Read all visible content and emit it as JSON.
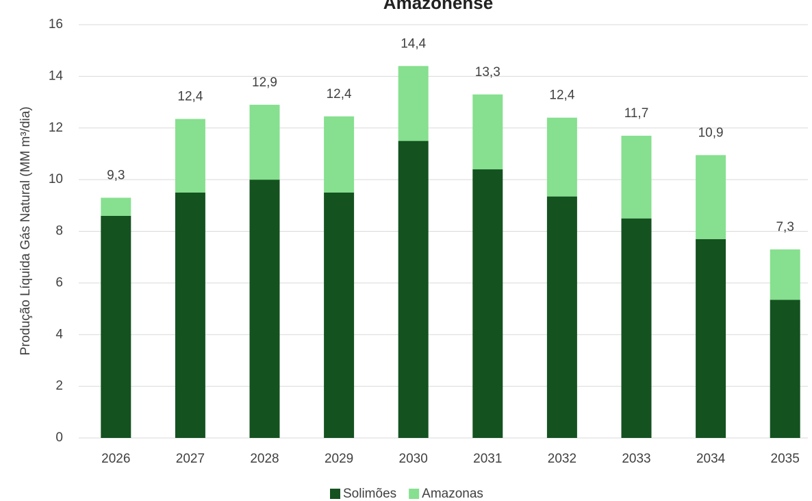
{
  "chart_data": {
    "type": "stacked_bar",
    "title": "Amazonense",
    "y_label": "Produção Líquida Gás Natural (MM m³/dia)",
    "categories": [
      "2026",
      "2027",
      "2028",
      "2029",
      "2030",
      "2031",
      "2032",
      "2033",
      "2034",
      "2035"
    ],
    "series": [
      {
        "name": "Solimões",
        "color": "#145220",
        "values": [
          8.6,
          9.5,
          10.0,
          9.5,
          11.5,
          10.4,
          9.35,
          8.5,
          7.7,
          5.35
        ]
      },
      {
        "name": "Amazonas",
        "color": "#86e08f",
        "values": [
          0.7,
          2.85,
          2.9,
          2.95,
          2.9,
          2.9,
          3.05,
          3.2,
          3.25,
          1.95
        ]
      }
    ],
    "total_labels": [
      "9,3",
      "12,4",
      "12,9",
      "12,4",
      "14,4",
      "13,3",
      "12,4",
      "11,7",
      "10,9",
      "7,3"
    ],
    "ylim": [
      0,
      16
    ],
    "yticks": [
      0,
      2,
      4,
      6,
      8,
      10,
      12,
      14,
      16
    ],
    "grid": true,
    "legend": "bottom"
  }
}
